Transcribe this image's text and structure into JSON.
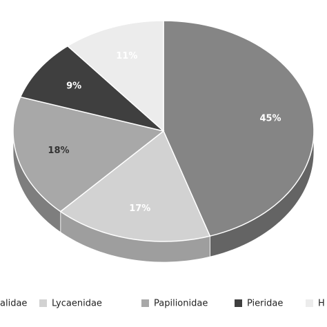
{
  "chart_data": {
    "type": "pie3d",
    "categories": [
      "alidae",
      "Lycaenidae",
      "Papilionidae",
      "Pieridae",
      "H"
    ],
    "values": [
      45,
      17,
      18,
      9,
      11
    ],
    "value_labels": [
      "45%",
      "17%",
      "18%",
      "9%",
      "11%"
    ],
    "colors": [
      "#858585",
      "#d2d2d2",
      "#a8a8a8",
      "#3f3f3f",
      "#ececec"
    ],
    "legend": "bottom"
  }
}
